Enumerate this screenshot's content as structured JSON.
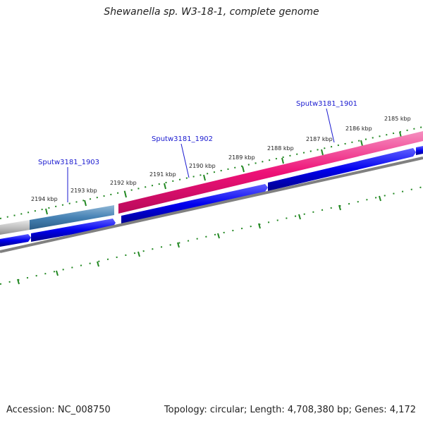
{
  "title": "Shewanella sp. W3-18-1, complete genome",
  "footer": {
    "accession": "Accession: NC_008750",
    "info": "Topology: circular; Length: 4,708,380 bp; Genes: 4,172"
  },
  "scale_labels": [
    "2194 kbp",
    "2193 kbp",
    "2192 kbp",
    "2191 kbp",
    "2190 kbp",
    "2189 kbp",
    "2188 kbp",
    "2187 kbp",
    "2186 kbp",
    "2185 kbp"
  ],
  "locus_labels": [
    "Sputw3181_1903",
    "Sputw3181_1902",
    "Sputw3181_1901"
  ],
  "colors": {
    "cds": "#0000ee",
    "rna_pink": "#ee1177",
    "rna_steelblue": "#4682b4",
    "backbone": "#808080",
    "ticks": "#228822",
    "locus_label": "#1a1ad0"
  }
}
